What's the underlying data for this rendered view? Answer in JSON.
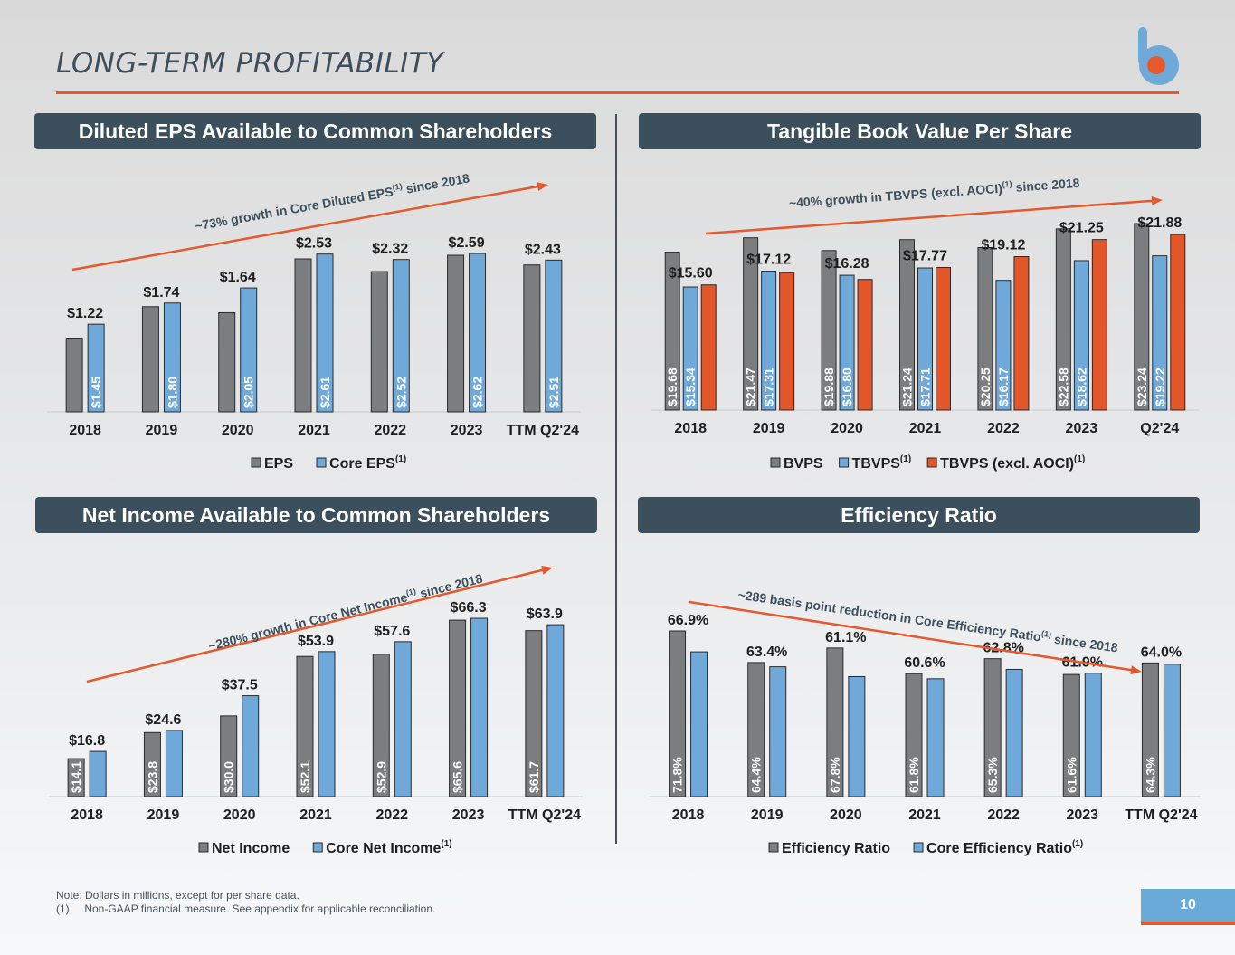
{
  "page": {
    "title": "LONG-TERM PROFITABILITY",
    "footnote_note": "Note: Dollars in millions, except for per share data.",
    "footnote_1": "(1)     Non-GAAP financial measure. See appendix for applicable reconciliation.",
    "page_number": "10"
  },
  "colors": {
    "gray": "#7b7d7f",
    "blue": "#6fa9d9",
    "orange": "#e2562a",
    "accent": "#e45a2c",
    "header": "#3c4f5d",
    "text": "#1e1e1e"
  },
  "chart_data": [
    {
      "type": "bar",
      "title": "Diluted EPS Available to Common Shareholders",
      "categories": [
        "2018",
        "2019",
        "2020",
        "2021",
        "2022",
        "2023",
        "TTM Q2'24"
      ],
      "series": [
        {
          "name": "EPS",
          "values": [
            1.22,
            1.74,
            1.64,
            2.53,
            2.32,
            2.59,
            2.43
          ],
          "labels": [
            "$1.22",
            "$1.74",
            "$1.64",
            "$2.53",
            "$2.32",
            "$2.59",
            "$2.43"
          ]
        },
        {
          "name": "Core EPS",
          "name_sup": "(1)",
          "values": [
            1.45,
            1.8,
            2.05,
            2.61,
            2.52,
            2.62,
            2.51
          ],
          "labels": [
            "$1.45",
            "$1.80",
            "$2.05",
            "$2.61",
            "$2.52",
            "$2.62",
            "$2.51"
          ]
        }
      ],
      "annotation": {
        "text": "~73% growth in Core Diluted EPS",
        "sup": "(1)",
        "suffix": " since 2018",
        "direction": "up"
      }
    },
    {
      "type": "bar",
      "title": "Tangible Book Value Per Share",
      "categories": [
        "2018",
        "2019",
        "2020",
        "2021",
        "2022",
        "2023",
        "Q2'24"
      ],
      "series": [
        {
          "name": "BVPS",
          "values": [
            19.68,
            21.47,
            19.88,
            21.24,
            20.25,
            22.58,
            23.24
          ],
          "labels": [
            "$19.68",
            "$21.47",
            "$19.88",
            "$21.24",
            "$20.25",
            "$22.58",
            "$23.24"
          ]
        },
        {
          "name": "TBVPS",
          "name_sup": "(1)",
          "values": [
            15.34,
            17.31,
            16.8,
            17.71,
            16.17,
            18.62,
            19.22
          ],
          "labels": [
            "$15.34",
            "$17.31",
            "$16.80",
            "$17.71",
            "$16.17",
            "$18.62",
            "$19.22"
          ]
        },
        {
          "name": "TBVPS (excl. AOCI)",
          "name_sup": "(1)",
          "values": [
            15.6,
            17.12,
            16.28,
            17.77,
            19.12,
            21.25,
            21.88
          ],
          "labels": [
            "$15.60",
            "$17.12",
            "$16.28",
            "$17.77",
            "$19.12",
            "$21.25",
            "$21.88"
          ]
        }
      ],
      "annotation": {
        "text": "~40% growth in TBVPS (excl. AOCI)",
        "sup": "(1)",
        "suffix": " since 2018",
        "direction": "up"
      }
    },
    {
      "type": "bar",
      "title": "Net Income Available to Common Shareholders",
      "categories": [
        "2018",
        "2019",
        "2020",
        "2021",
        "2022",
        "2023",
        "TTM Q2'24"
      ],
      "series": [
        {
          "name": "Net Income",
          "values": [
            14.1,
            23.8,
            30.0,
            52.1,
            52.9,
            65.6,
            61.7
          ],
          "labels": [
            "$14.1",
            "$23.8",
            "$30.0",
            "$52.1",
            "$52.9",
            "$65.6",
            "$61.7"
          ]
        },
        {
          "name": "Core Net Income",
          "name_sup": "(1)",
          "values": [
            16.8,
            24.6,
            37.5,
            53.9,
            57.6,
            66.3,
            63.9
          ],
          "labels": [
            "$16.8",
            "$24.6",
            "$37.5",
            "$53.9",
            "$57.6",
            "$66.3",
            "$63.9"
          ]
        }
      ],
      "annotation": {
        "text": "~280% growth in Core Net Income",
        "sup": "(1)",
        "suffix": " since 2018",
        "direction": "up"
      }
    },
    {
      "type": "bar",
      "title": "Efficiency Ratio",
      "categories": [
        "2018",
        "2019",
        "2020",
        "2021",
        "2022",
        "2023",
        "TTM Q2'24"
      ],
      "series": [
        {
          "name": "Efficiency Ratio",
          "values": [
            71.8,
            64.4,
            67.8,
            61.8,
            65.3,
            61.6,
            64.3
          ],
          "labels": [
            "71.8%",
            "64.4%",
            "67.8%",
            "61.8%",
            "65.3%",
            "61.6%",
            "64.3%"
          ]
        },
        {
          "name": "Core Efficiency Ratio",
          "name_sup": "(1)",
          "values": [
            66.9,
            63.4,
            61.1,
            60.6,
            62.8,
            61.9,
            64.0
          ],
          "labels": [
            "66.9%",
            "63.4%",
            "61.1%",
            "60.6%",
            "62.8%",
            "61.9%",
            "64.0%"
          ]
        }
      ],
      "annotation": {
        "text": "~289 basis point reduction in Core Efficiency Ratio",
        "sup": "(1)",
        "suffix": " since 2018",
        "direction": "down"
      }
    }
  ]
}
